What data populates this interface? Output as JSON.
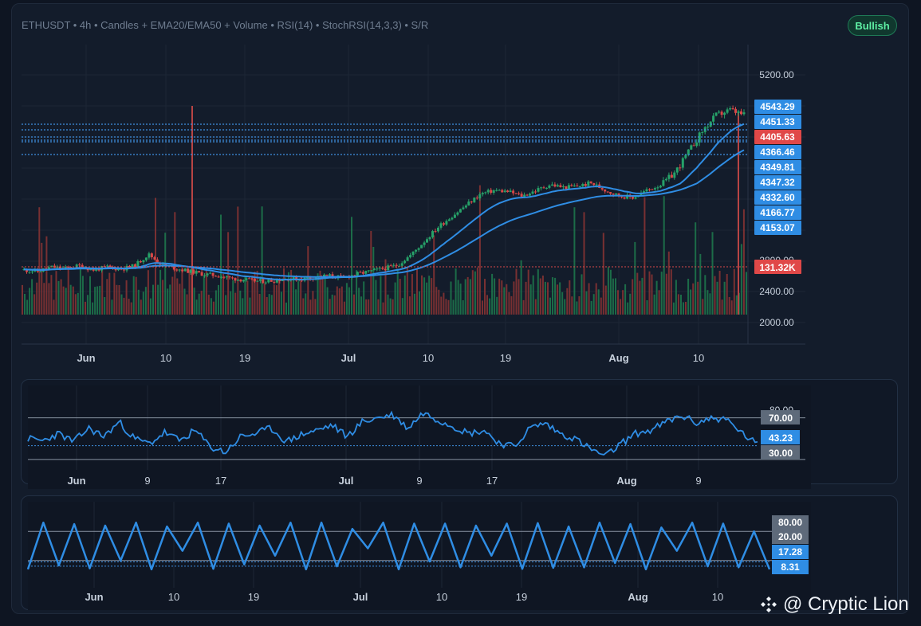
{
  "header": {
    "title": "ETHUSDT • 4h • Candles + EMA20/EMA50 + Volume • RSI(14) • StochRSI(14,3,3) • S/R",
    "badge": "Bullish"
  },
  "colors": {
    "up": "#26a269",
    "down": "#d94848",
    "ema": "#2f8de4",
    "label_blue": "#2f8de4",
    "label_red": "#e04848",
    "label_gray": "#5e6a7a"
  },
  "watermark": {
    "text": "@ Cryptic Lion",
    "icon": "binance-diamond-icon"
  },
  "chart_data": [
    {
      "type": "candlestick",
      "title": "ETHUSDT 4h",
      "x_ticks": [
        "Jun",
        "10",
        "19",
        "Jul",
        "10",
        "19",
        "Aug",
        "10"
      ],
      "y_ticks": [
        "5200.00",
        "2400.00",
        "2000.00"
      ],
      "overlapping_tick": "2800.00",
      "price_labels": [
        {
          "value": "4543.29",
          "type": "current"
        },
        {
          "value": "4451.33",
          "type": "level"
        },
        {
          "value": "4405.63",
          "type": "last"
        },
        {
          "value": "4366.46",
          "type": "level"
        },
        {
          "value": "4349.81",
          "type": "level"
        },
        {
          "value": "4347.32",
          "type": "level"
        },
        {
          "value": "4332.60",
          "type": "level"
        },
        {
          "value": "4166.77",
          "type": "level"
        },
        {
          "value": "4153.07",
          "type": "level"
        }
      ],
      "volume_label": "131.32K",
      "series": [
        "EMA20",
        "EMA50"
      ],
      "close_path": [
        2580,
        2560,
        2620,
        2600,
        2640,
        2580,
        2620,
        2590,
        2640,
        2800,
        2650,
        2600,
        2560,
        2520,
        2500,
        2460,
        2440,
        2420,
        2430,
        2460,
        2450,
        2480,
        2500,
        2470,
        2520,
        2560,
        2600,
        2650,
        2800,
        3000,
        3200,
        3350,
        3500,
        3650,
        3700,
        3680,
        3620,
        3700,
        3780,
        3740,
        3760,
        3800,
        3700,
        3620,
        3600,
        3700,
        3780,
        3900,
        4100,
        4300,
        4450,
        4500,
        4451
      ]
    },
    {
      "type": "line",
      "title": "RSI(14)",
      "x_ticks": [
        "Jun",
        "9",
        "17",
        "Jul",
        "9",
        "17",
        "Aug",
        "9"
      ],
      "y_ticks": [
        "80.00"
      ],
      "levels": [
        "70.00",
        "30.00"
      ],
      "current": "43.23",
      "values": [
        50,
        48,
        55,
        47,
        60,
        52,
        66,
        50,
        45,
        56,
        48,
        58,
        42,
        37,
        52,
        55,
        60,
        47,
        54,
        58,
        63,
        52,
        66,
        70,
        73,
        60,
        75,
        68,
        62,
        55,
        58,
        46,
        42,
        60,
        65,
        55,
        50,
        40,
        33,
        45,
        55,
        58,
        66,
        72,
        65,
        70,
        68,
        55,
        44
      ]
    },
    {
      "type": "line",
      "title": "StochRSI(14,3,3)",
      "x_ticks": [
        "Jun",
        "10",
        "19",
        "Jul",
        "10",
        "19",
        "Aug",
        "10"
      ],
      "levels": [
        "80.00",
        "20.00"
      ],
      "current_k": "17.28",
      "current_d": "8.31",
      "values": [
        2,
        98,
        10,
        95,
        4,
        92,
        20,
        98,
        2,
        90,
        40,
        98,
        3,
        96,
        12,
        92,
        30,
        98,
        2,
        98,
        8,
        85,
        45,
        98,
        2,
        96,
        18,
        96,
        6,
        92,
        30,
        96,
        3,
        97,
        5,
        90,
        6,
        98,
        15,
        95,
        2,
        88,
        40,
        98,
        8,
        96,
        6,
        80,
        2
      ]
    }
  ]
}
